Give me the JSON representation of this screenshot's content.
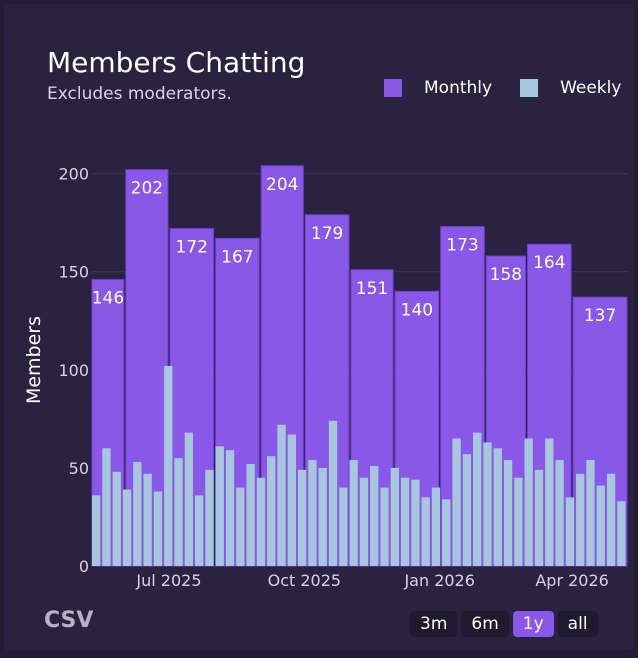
{
  "header": {
    "title": "Members Chatting",
    "subtitle": "Excludes moderators."
  },
  "legend": [
    {
      "label": "Monthly",
      "color": "#8a58e8"
    },
    {
      "label": "Weekly",
      "color": "#a7c7dc"
    }
  ],
  "footer": {
    "csv_label": "CSV",
    "ranges": [
      "3m",
      "6m",
      "1y",
      "all"
    ],
    "active_range": "1y"
  },
  "chart_data": {
    "type": "bar",
    "title": "Members Chatting",
    "subtitle": "Excludes moderators.",
    "ylabel": "Members",
    "xlabel": "",
    "ylim": [
      0,
      210
    ],
    "yticks": [
      0,
      50,
      100,
      150,
      200
    ],
    "xticks": [
      {
        "label": "Jul 2025",
        "x": "2025-07-01"
      },
      {
        "label": "Oct 2025",
        "x": "2025-10-01"
      },
      {
        "label": "Jan 2026",
        "x": "2026-01-01"
      },
      {
        "label": "Apr 2026",
        "x": "2026-04-01"
      }
    ],
    "x_range": [
      "2025-05-09",
      "2026-05-09"
    ],
    "grid": true,
    "legend_position": "top-right",
    "series": [
      {
        "name": "Monthly",
        "color": "#8a58e8",
        "points": [
          {
            "start": "2025-05-09",
            "end": "2025-06-01",
            "value": 146
          },
          {
            "start": "2025-06-01",
            "end": "2025-07-01",
            "value": 202
          },
          {
            "start": "2025-07-01",
            "end": "2025-08-01",
            "value": 172
          },
          {
            "start": "2025-08-01",
            "end": "2025-09-01",
            "value": 167
          },
          {
            "start": "2025-09-01",
            "end": "2025-10-01",
            "value": 204
          },
          {
            "start": "2025-10-01",
            "end": "2025-11-01",
            "value": 179
          },
          {
            "start": "2025-11-01",
            "end": "2025-12-01",
            "value": 151
          },
          {
            "start": "2025-12-01",
            "end": "2026-01-01",
            "value": 140
          },
          {
            "start": "2026-01-01",
            "end": "2026-02-01",
            "value": 173
          },
          {
            "start": "2026-02-01",
            "end": "2026-03-01",
            "value": 158
          },
          {
            "start": "2026-03-01",
            "end": "2026-04-01",
            "value": 164
          },
          {
            "start": "2026-04-01",
            "end": "2026-05-09",
            "value": 137
          }
        ]
      },
      {
        "name": "Weekly",
        "color": "#a7c7dc",
        "start": "2025-05-09",
        "values": [
          36,
          60,
          48,
          39,
          53,
          47,
          38,
          102,
          55,
          68,
          36,
          49,
          61,
          59,
          40,
          52,
          45,
          56,
          72,
          67,
          49,
          54,
          50,
          74,
          40,
          54,
          45,
          51,
          40,
          50,
          45,
          44,
          35,
          40,
          34,
          65,
          57,
          68,
          63,
          60,
          54,
          45,
          65,
          49,
          65,
          54,
          35,
          47,
          54,
          41,
          47,
          33
        ]
      }
    ]
  }
}
